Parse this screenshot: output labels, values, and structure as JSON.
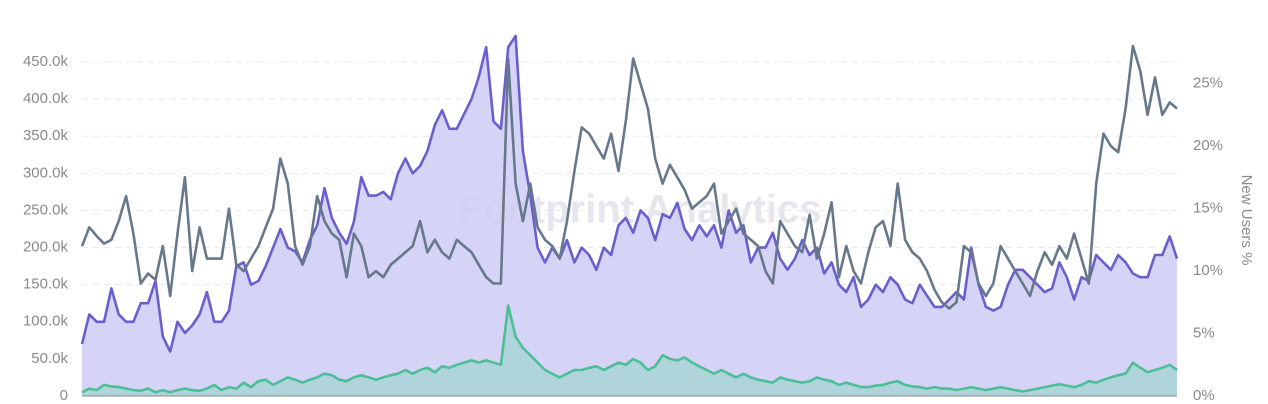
{
  "chart_data": {
    "type": "area",
    "watermark": "Footprint Analytics",
    "y2label": "New Users %",
    "ylim": [
      0,
      500000
    ],
    "yticks": [
      0,
      {
        "value": 50000,
        "label": "50.0k"
      },
      {
        "value": 100000,
        "label": "100.0k"
      },
      {
        "value": 150000,
        "label": "150.0k"
      },
      {
        "value": 200000,
        "label": "200.0k"
      },
      {
        "value": 250000,
        "label": "250.0k"
      },
      {
        "value": 300000,
        "label": "300.0k"
      },
      {
        "value": 350000,
        "label": "350.0k"
      },
      {
        "value": 400000,
        "label": "400.0k"
      },
      {
        "value": 450000,
        "label": "450.0k"
      }
    ],
    "y2lim": [
      0,
      29.7
    ],
    "y2ticks": [
      {
        "value": 0,
        "label": "0%"
      },
      {
        "value": 5,
        "label": "5%"
      },
      {
        "value": 10,
        "label": "10%"
      },
      {
        "value": 15,
        "label": "15%"
      },
      {
        "value": 20,
        "label": "20%"
      },
      {
        "value": 25,
        "label": "25%"
      }
    ],
    "grid": true,
    "series": [
      {
        "color": "#6a5fcf",
        "fill": "#cfcdf5",
        "area": true,
        "values": [
          70000,
          110000,
          100000,
          100000,
          145000,
          110000,
          100000,
          100000,
          125000,
          125000,
          155000,
          80000,
          60000,
          100000,
          85000,
          95000,
          110000,
          140000,
          100000,
          100000,
          115000,
          175000,
          180000,
          150000,
          155000,
          175000,
          200000,
          225000,
          200000,
          195000,
          180000,
          210000,
          230000,
          280000,
          240000,
          220000,
          205000,
          235000,
          295000,
          270000,
          270000,
          275000,
          265000,
          300000,
          320000,
          300000,
          310000,
          330000,
          365000,
          385000,
          360000,
          360000,
          380000,
          400000,
          430000,
          470000,
          370000,
          360000,
          470000,
          485000,
          330000,
          270000,
          200000,
          180000,
          200000,
          185000,
          210000,
          180000,
          200000,
          190000,
          170000,
          200000,
          190000,
          230000,
          240000,
          220000,
          250000,
          240000,
          210000,
          245000,
          240000,
          260000,
          225000,
          210000,
          230000,
          215000,
          230000,
          200000,
          250000,
          220000,
          230000,
          180000,
          200000,
          200000,
          220000,
          185000,
          170000,
          185000,
          210000,
          190000,
          200000,
          165000,
          180000,
          150000,
          140000,
          160000,
          120000,
          130000,
          150000,
          140000,
          160000,
          150000,
          130000,
          125000,
          150000,
          135000,
          120000,
          120000,
          130000,
          140000,
          130000,
          200000,
          150000,
          120000,
          115000,
          120000,
          150000,
          170000,
          170000,
          160000,
          150000,
          140000,
          145000,
          180000,
          160000,
          130000,
          160000,
          155000,
          190000,
          180000,
          170000,
          190000,
          180000,
          165000,
          160000,
          160000,
          190000,
          190000,
          215000,
          185000
        ]
      },
      {
        "color": "#4cbf96",
        "fill": "#a9d3d6",
        "area": true,
        "values": [
          5000,
          10000,
          8000,
          15000,
          13000,
          12000,
          10000,
          8000,
          7000,
          10000,
          5000,
          8000,
          5000,
          8000,
          10000,
          8000,
          7000,
          10000,
          15000,
          8000,
          12000,
          10000,
          18000,
          12000,
          20000,
          22000,
          15000,
          20000,
          25000,
          22000,
          18000,
          22000,
          25000,
          30000,
          28000,
          22000,
          20000,
          25000,
          28000,
          25000,
          22000,
          25000,
          28000,
          30000,
          35000,
          30000,
          35000,
          38000,
          32000,
          40000,
          38000,
          42000,
          45000,
          48000,
          45000,
          48000,
          45000,
          42000,
          122000,
          80000,
          65000,
          55000,
          45000,
          35000,
          30000,
          25000,
          30000,
          35000,
          35000,
          38000,
          40000,
          35000,
          40000,
          45000,
          42000,
          50000,
          45000,
          35000,
          40000,
          55000,
          50000,
          48000,
          52000,
          45000,
          40000,
          35000,
          30000,
          35000,
          30000,
          25000,
          30000,
          25000,
          22000,
          20000,
          18000,
          25000,
          22000,
          20000,
          18000,
          20000,
          25000,
          22000,
          20000,
          15000,
          18000,
          15000,
          12000,
          12000,
          14000,
          15000,
          18000,
          20000,
          15000,
          13000,
          12000,
          10000,
          12000,
          10000,
          10000,
          8000,
          10000,
          12000,
          10000,
          8000,
          10000,
          12000,
          10000,
          8000,
          6000,
          8000,
          10000,
          12000,
          14000,
          16000,
          14000,
          12000,
          15000,
          20000,
          18000,
          22000,
          25000,
          28000,
          30000,
          45000,
          38000,
          32000,
          35000,
          38000,
          42000,
          35000
        ]
      },
      {
        "color": "#66788a",
        "area": false,
        "axis": "y2",
        "values": [
          12,
          13.5,
          12.8,
          12.2,
          12.5,
          14,
          16,
          13,
          9,
          9.8,
          9.3,
          12,
          8,
          13,
          17.5,
          10,
          13.5,
          11,
          11,
          11,
          15,
          10.5,
          10,
          11,
          12,
          13.5,
          15,
          19,
          17,
          12,
          10.5,
          12,
          16,
          14,
          13,
          12.5,
          9.5,
          13,
          12,
          9.5,
          10,
          9.5,
          10.5,
          11,
          11.5,
          12,
          14,
          11.5,
          12.5,
          11.5,
          11,
          12.5,
          12,
          11.5,
          10.5,
          9.5,
          9,
          9,
          27,
          17,
          14,
          17,
          13.5,
          12.5,
          12,
          11,
          14,
          18,
          21.5,
          21,
          20,
          19,
          21,
          18,
          22,
          27,
          25,
          23,
          19,
          17,
          18.5,
          17.5,
          16.5,
          15,
          15.5,
          16,
          17,
          13,
          14,
          15,
          13,
          12.5,
          12,
          10,
          9,
          14,
          13,
          12,
          11.5,
          14.5,
          11,
          13,
          15.5,
          9.5,
          12,
          10,
          9,
          11.5,
          13.5,
          14,
          12,
          17,
          12.5,
          11.5,
          11,
          10,
          8.5,
          7.5,
          7,
          7.5,
          12,
          11.5,
          9,
          8,
          9,
          12,
          11,
          10,
          9,
          8,
          10,
          11.5,
          10.5,
          12,
          11,
          13,
          11,
          9,
          17,
          21,
          20,
          19.5,
          23,
          28,
          26,
          22.5,
          25.5,
          22.5,
          23.5,
          23
        ]
      }
    ]
  }
}
